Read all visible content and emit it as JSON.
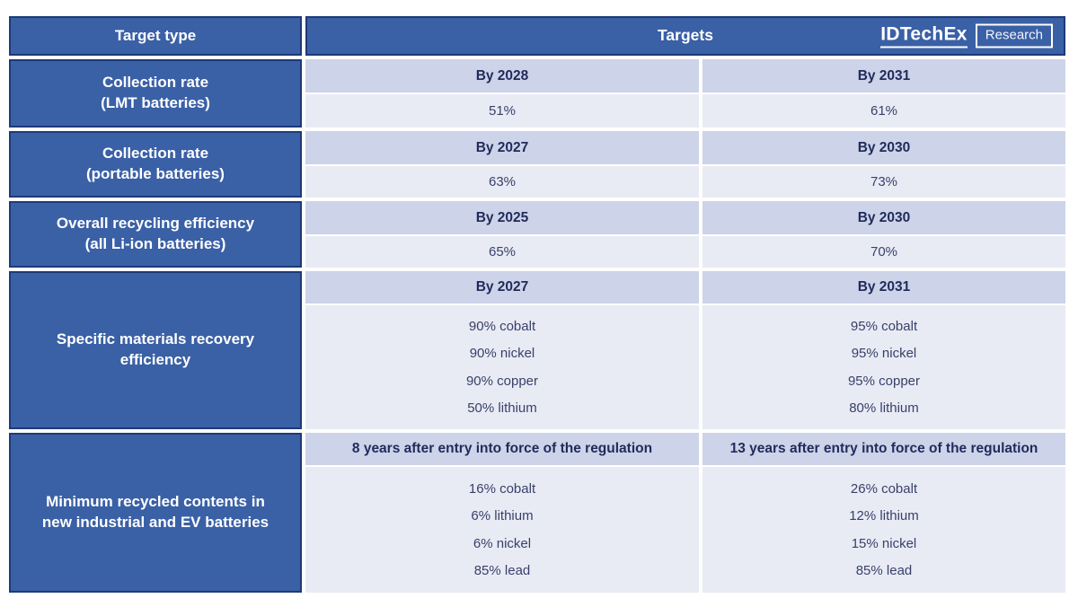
{
  "colors": {
    "cell_blue": "#3a60a6",
    "cell_border_navy": "#1d3a78",
    "subheader_lavender": "#cdd3e8",
    "value_row_light": "#e9ebf4",
    "navy_text": "#1f2b5b",
    "value_text": "#39406a",
    "white_text": "#ffffff"
  },
  "logo": {
    "brand": "IDTechEx",
    "suffix": "Research"
  },
  "chart_data": {
    "type": "table",
    "column_headers": {
      "target_type": "Target type",
      "targets": "Targets"
    },
    "rows": [
      {
        "label_line1": "Collection rate",
        "label_line2": "(LMT batteries)",
        "col1": {
          "header": "By 2028",
          "values": [
            "51%"
          ]
        },
        "col2": {
          "header": "By 2031",
          "values": [
            "61%"
          ]
        }
      },
      {
        "label_line1": "Collection rate",
        "label_line2": "(portable batteries)",
        "col1": {
          "header": "By 2027",
          "values": [
            "63%"
          ]
        },
        "col2": {
          "header": "By 2030",
          "values": [
            "73%"
          ]
        }
      },
      {
        "label_line1": "Overall recycling efficiency",
        "label_line2": "(all Li-ion batteries)",
        "col1": {
          "header": "By 2025",
          "values": [
            "65%"
          ]
        },
        "col2": {
          "header": "By 2030",
          "values": [
            "70%"
          ]
        }
      },
      {
        "label_line1": "Specific materials recovery",
        "label_line2": "efficiency",
        "col1": {
          "header": "By 2027",
          "values": [
            "90% cobalt",
            "90% nickel",
            "90% copper",
            "50% lithium"
          ]
        },
        "col2": {
          "header": "By 2031",
          "values": [
            "95% cobalt",
            "95% nickel",
            "95% copper",
            "80% lithium"
          ]
        }
      },
      {
        "label_line1": "Minimum recycled contents in",
        "label_line2": "new industrial and EV batteries",
        "col1": {
          "header": "8 years after entry into force of the regulation",
          "values": [
            "16% cobalt",
            "6% lithium",
            "6% nickel",
            "85% lead"
          ]
        },
        "col2": {
          "header": "13 years after entry into force of the regulation",
          "values": [
            "26% cobalt",
            "12% lithium",
            "15% nickel",
            "85% lead"
          ]
        }
      }
    ]
  }
}
